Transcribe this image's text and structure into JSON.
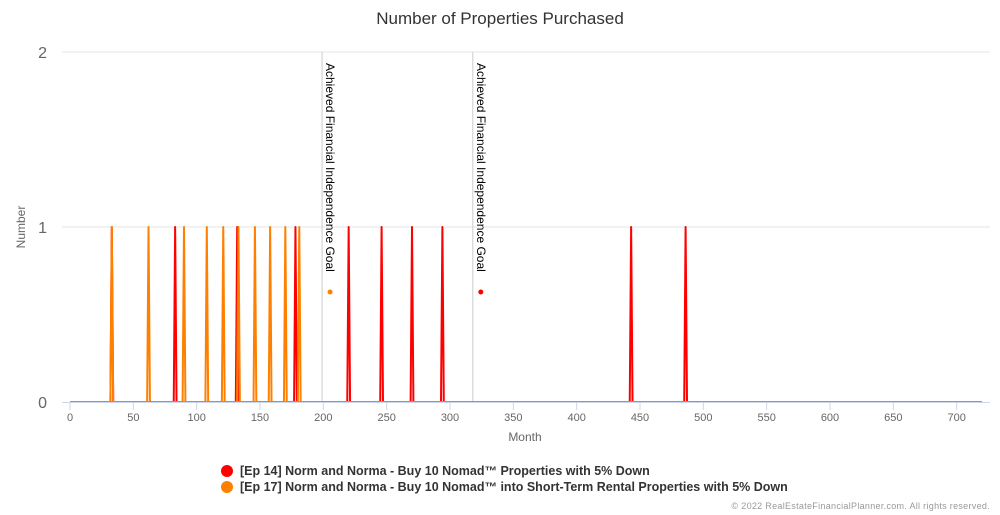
{
  "chart_data": {
    "type": "line",
    "title": "Number of Properties Purchased",
    "xlabel": "Month",
    "ylabel": "Number",
    "xlim": [
      0,
      720
    ],
    "ylim": [
      0,
      2
    ],
    "x_ticks": [
      0,
      50,
      100,
      150,
      200,
      250,
      300,
      350,
      400,
      450,
      500,
      550,
      600,
      650,
      700
    ],
    "y_ticks": [
      0,
      1,
      2
    ],
    "grid": true,
    "legend_position": "bottom-center",
    "series": [
      {
        "name": "[Ep 14] Norm and Norma - Buy 10 Nomad™ Properties with 5% Down",
        "color": "#ff0000",
        "purchase_months": [
          33,
          83,
          132,
          178,
          220,
          246,
          270,
          294,
          443,
          486
        ],
        "purchase_value": 1
      },
      {
        "name": "[Ep 17] Norm and Norma - Buy 10 Nomad™ into Short-Term Rental Properties with 5% Down",
        "color": "#ff8000",
        "purchase_months": [
          33,
          62,
          90,
          108,
          121,
          133,
          146,
          158,
          170,
          181
        ],
        "purchase_value": 1
      }
    ],
    "annotations": [
      {
        "x": 199,
        "label": "Achieved Financial Independence Goal",
        "marker_color": "#ff8000"
      },
      {
        "x": 318,
        "label": "Achieved Financial Independence Goal",
        "marker_color": "#ff0000"
      }
    ]
  },
  "credit": "© 2022 RealEstateFinancialPlanner.com. All rights reserved."
}
